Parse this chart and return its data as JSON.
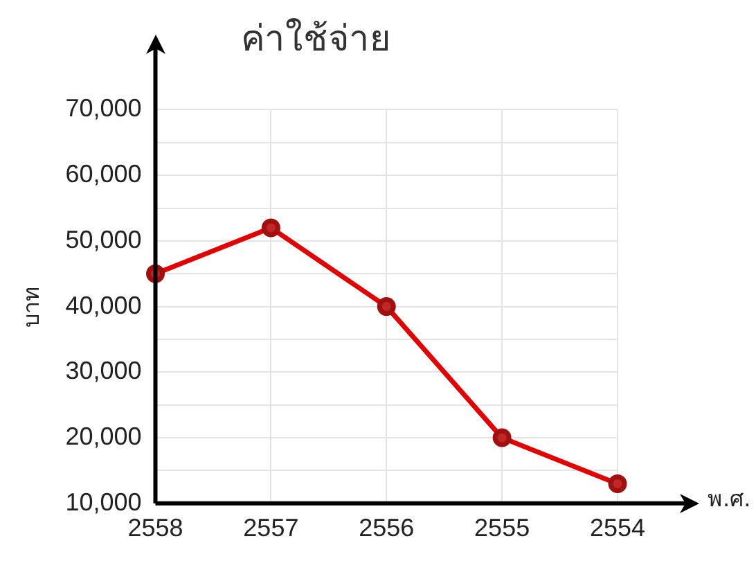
{
  "chart_data": {
    "type": "line",
    "title": "ค่าใช้จ่าย",
    "xlabel": "พ.ศ.",
    "ylabel": "บาท",
    "categories": [
      "2558",
      "2557",
      "2556",
      "2555",
      "2554"
    ],
    "series": [
      {
        "color": "#e00000",
        "values": [
          45000,
          52000,
          40000,
          20000,
          13000
        ]
      }
    ],
    "ylim": [
      10000,
      70000
    ],
    "yticks": [
      {
        "value": 10000,
        "label": "10,000"
      },
      {
        "value": 15000,
        "label": null
      },
      {
        "value": 20000,
        "label": "20,000"
      },
      {
        "value": 25000,
        "label": null
      },
      {
        "value": 30000,
        "label": "30,000"
      },
      {
        "value": 35000,
        "label": null
      },
      {
        "value": 40000,
        "label": "40,000"
      },
      {
        "value": 45000,
        "label": null
      },
      {
        "value": 50000,
        "label": "50,000"
      },
      {
        "value": 55000,
        "label": null
      },
      {
        "value": 60000,
        "label": "60,000"
      },
      {
        "value": 65000,
        "label": null
      },
      {
        "value": 70000,
        "label": "70,000"
      }
    ],
    "grid": true,
    "marker": "circle",
    "line_style": "solid",
    "legend": false
  }
}
